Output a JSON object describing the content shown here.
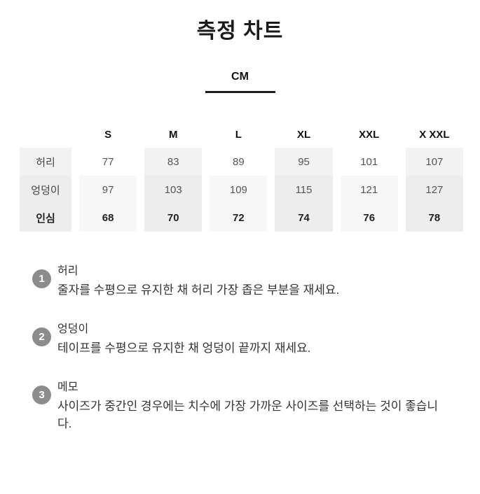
{
  "page": {
    "title": "측정 차트",
    "unit_label": "CM"
  },
  "size_table": {
    "columns": [
      "S",
      "M",
      "L",
      "XL",
      "XXL",
      "X XXL"
    ],
    "rows": [
      {
        "label": "허리",
        "values": [
          "77",
          "83",
          "89",
          "95",
          "101",
          "107"
        ]
      },
      {
        "label": "엉덩이",
        "values": [
          "97",
          "103",
          "109",
          "115",
          "121",
          "127"
        ]
      },
      {
        "label": "인심",
        "values": [
          "68",
          "70",
          "72",
          "74",
          "76",
          "78"
        ]
      }
    ]
  },
  "notes": [
    {
      "number": "1",
      "heading": "허리",
      "body": "줄자를 수평으로 유지한 채 허리 가장 좁은 부분을 재세요."
    },
    {
      "number": "2",
      "heading": "엉덩이",
      "body": "테이프를 수평으로 유지한 채 엉덩이 끝까지 재세요."
    },
    {
      "number": "3",
      "heading": "메모",
      "body": "사이즈가 중간인 경우에는 치수에 가장 가까운 사이즈를 선택하는 것이 좋습니다."
    }
  ],
  "colors": {
    "column_shade": "#f2f2f2",
    "row_tint": "#f7f7f7",
    "row_tint_shaded": "#ededed",
    "underline": "#1c1c1c",
    "note_badge": "#8c8c8c"
  }
}
